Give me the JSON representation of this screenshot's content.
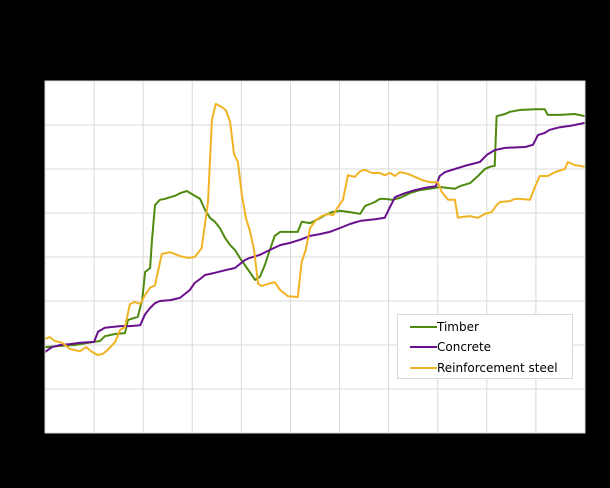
{
  "chart_data": {
    "type": "line",
    "title": "",
    "xlabel": "",
    "ylabel": "",
    "note": "Axis tick labels and title are rendered black-on-black and not legible; values are expressed in gridline units (0 = bottom gridline, 8 = top gridline), x in gridline intervals (0-11).",
    "xlim": [
      0,
      11
    ],
    "ylim": [
      0,
      8
    ],
    "grid": true,
    "legend_position": "lower right (inside plot)",
    "x_gridlines": 12,
    "y_gridlines": 9,
    "series": [
      {
        "name": "Timber",
        "color": "#4d8a0e",
        "points": [
          [
            0,
            1.95
          ],
          [
            0.31,
            1.98
          ],
          [
            0.61,
            2.0
          ],
          [
            1.0,
            2.07
          ],
          [
            1.12,
            2.09
          ],
          [
            1.22,
            2.2
          ],
          [
            1.43,
            2.25
          ],
          [
            1.63,
            2.27
          ],
          [
            1.69,
            2.57
          ],
          [
            1.89,
            2.64
          ],
          [
            1.98,
            3.02
          ],
          [
            2.04,
            3.66
          ],
          [
            2.14,
            3.75
          ],
          [
            2.18,
            4.39
          ],
          [
            2.24,
            5.18
          ],
          [
            2.34,
            5.3
          ],
          [
            2.44,
            5.32
          ],
          [
            2.55,
            5.36
          ],
          [
            2.65,
            5.39
          ],
          [
            2.75,
            5.45
          ],
          [
            2.89,
            5.5
          ],
          [
            3.05,
            5.39
          ],
          [
            3.16,
            5.32
          ],
          [
            3.26,
            5.07
          ],
          [
            3.36,
            4.89
          ],
          [
            3.46,
            4.8
          ],
          [
            3.56,
            4.66
          ],
          [
            3.67,
            4.43
          ],
          [
            3.77,
            4.27
          ],
          [
            3.87,
            4.16
          ],
          [
            3.97,
            3.98
          ],
          [
            4.07,
            3.82
          ],
          [
            4.17,
            3.66
          ],
          [
            4.28,
            3.48
          ],
          [
            4.38,
            3.55
          ],
          [
            4.48,
            3.82
          ],
          [
            4.58,
            4.16
          ],
          [
            4.68,
            4.48
          ],
          [
            4.79,
            4.57
          ],
          [
            4.99,
            4.57
          ],
          [
            5.15,
            4.57
          ],
          [
            5.23,
            4.8
          ],
          [
            5.4,
            4.77
          ],
          [
            5.56,
            4.86
          ],
          [
            5.7,
            4.95
          ],
          [
            5.85,
            5.02
          ],
          [
            6.01,
            5.05
          ],
          [
            6.21,
            5.02
          ],
          [
            6.42,
            4.98
          ],
          [
            6.52,
            5.16
          ],
          [
            6.72,
            5.25
          ],
          [
            6.82,
            5.32
          ],
          [
            6.92,
            5.32
          ],
          [
            7.07,
            5.3
          ],
          [
            7.23,
            5.34
          ],
          [
            7.43,
            5.45
          ],
          [
            7.64,
            5.52
          ],
          [
            7.84,
            5.55
          ],
          [
            8.04,
            5.59
          ],
          [
            8.19,
            5.57
          ],
          [
            8.35,
            5.55
          ],
          [
            8.45,
            5.61
          ],
          [
            8.66,
            5.68
          ],
          [
            8.82,
            5.84
          ],
          [
            8.96,
            6.0
          ],
          [
            9.06,
            6.05
          ],
          [
            9.16,
            6.07
          ],
          [
            9.2,
            7.2
          ],
          [
            9.37,
            7.25
          ],
          [
            9.47,
            7.3
          ],
          [
            9.67,
            7.34
          ],
          [
            9.98,
            7.36
          ],
          [
            10.18,
            7.36
          ],
          [
            10.24,
            7.23
          ],
          [
            10.49,
            7.23
          ],
          [
            10.79,
            7.25
          ],
          [
            11.0,
            7.2
          ]
        ]
      },
      {
        "name": "Concrete",
        "color": "#6a0f8e",
        "points": [
          [
            0,
            1.84
          ],
          [
            0.14,
            1.95
          ],
          [
            0.31,
            2.0
          ],
          [
            0.51,
            2.02
          ],
          [
            0.71,
            2.05
          ],
          [
            1.0,
            2.07
          ],
          [
            1.08,
            2.3
          ],
          [
            1.22,
            2.39
          ],
          [
            1.36,
            2.41
          ],
          [
            1.53,
            2.43
          ],
          [
            1.73,
            2.43
          ],
          [
            1.94,
            2.45
          ],
          [
            2.04,
            2.7
          ],
          [
            2.14,
            2.84
          ],
          [
            2.24,
            2.95
          ],
          [
            2.34,
            3.0
          ],
          [
            2.55,
            3.02
          ],
          [
            2.75,
            3.07
          ],
          [
            2.95,
            3.25
          ],
          [
            3.05,
            3.41
          ],
          [
            3.16,
            3.5
          ],
          [
            3.26,
            3.59
          ],
          [
            3.46,
            3.64
          ],
          [
            3.67,
            3.7
          ],
          [
            3.87,
            3.75
          ],
          [
            3.97,
            3.84
          ],
          [
            4.07,
            3.93
          ],
          [
            4.17,
            3.98
          ],
          [
            4.38,
            4.05
          ],
          [
            4.58,
            4.16
          ],
          [
            4.79,
            4.27
          ],
          [
            4.99,
            4.32
          ],
          [
            5.19,
            4.39
          ],
          [
            5.4,
            4.48
          ],
          [
            5.6,
            4.52
          ],
          [
            5.8,
            4.57
          ],
          [
            6.01,
            4.66
          ],
          [
            6.21,
            4.75
          ],
          [
            6.42,
            4.82
          ],
          [
            6.72,
            4.86
          ],
          [
            6.92,
            4.89
          ],
          [
            7.03,
            5.14
          ],
          [
            7.13,
            5.36
          ],
          [
            7.33,
            5.45
          ],
          [
            7.54,
            5.52
          ],
          [
            7.74,
            5.57
          ],
          [
            7.96,
            5.61
          ],
          [
            8.04,
            5.84
          ],
          [
            8.15,
            5.93
          ],
          [
            8.35,
            6.0
          ],
          [
            8.55,
            6.07
          ],
          [
            8.86,
            6.16
          ],
          [
            9.0,
            6.32
          ],
          [
            9.16,
            6.43
          ],
          [
            9.37,
            6.48
          ],
          [
            9.78,
            6.5
          ],
          [
            9.94,
            6.55
          ],
          [
            10.04,
            6.77
          ],
          [
            10.18,
            6.82
          ],
          [
            10.28,
            6.89
          ],
          [
            10.49,
            6.95
          ],
          [
            10.69,
            6.98
          ],
          [
            10.79,
            7.0
          ],
          [
            11.0,
            7.05
          ]
        ]
      },
      {
        "name": "Reinforcement steel",
        "color": "#f0b323",
        "points": [
          [
            0,
            2.14
          ],
          [
            0.1,
            2.18
          ],
          [
            0.2,
            2.09
          ],
          [
            0.35,
            2.05
          ],
          [
            0.51,
            1.91
          ],
          [
            0.71,
            1.86
          ],
          [
            0.84,
            1.95
          ],
          [
            0.96,
            1.84
          ],
          [
            1.08,
            1.77
          ],
          [
            1.18,
            1.8
          ],
          [
            1.28,
            1.89
          ],
          [
            1.43,
            2.07
          ],
          [
            1.53,
            2.34
          ],
          [
            1.63,
            2.41
          ],
          [
            1.73,
            2.93
          ],
          [
            1.83,
            2.98
          ],
          [
            1.94,
            2.93
          ],
          [
            2.04,
            3.14
          ],
          [
            2.14,
            3.3
          ],
          [
            2.24,
            3.36
          ],
          [
            2.38,
            4.07
          ],
          [
            2.55,
            4.11
          ],
          [
            2.75,
            4.02
          ],
          [
            2.91,
            3.98
          ],
          [
            3.05,
            4.0
          ],
          [
            3.19,
            4.2
          ],
          [
            3.32,
            5.25
          ],
          [
            3.4,
            7.11
          ],
          [
            3.48,
            7.48
          ],
          [
            3.6,
            7.41
          ],
          [
            3.68,
            7.34
          ],
          [
            3.77,
            7.07
          ],
          [
            3.85,
            6.34
          ],
          [
            3.93,
            6.16
          ],
          [
            4.01,
            5.41
          ],
          [
            4.09,
            4.89
          ],
          [
            4.17,
            4.61
          ],
          [
            4.26,
            4.16
          ],
          [
            4.34,
            3.39
          ],
          [
            4.42,
            3.34
          ],
          [
            4.54,
            3.39
          ],
          [
            4.68,
            3.43
          ],
          [
            4.79,
            3.25
          ],
          [
            4.95,
            3.11
          ],
          [
            5.15,
            3.09
          ],
          [
            5.23,
            3.89
          ],
          [
            5.31,
            4.16
          ],
          [
            5.4,
            4.66
          ],
          [
            5.52,
            4.84
          ],
          [
            5.64,
            4.93
          ],
          [
            5.76,
            4.98
          ],
          [
            5.87,
            4.95
          ],
          [
            5.95,
            5.11
          ],
          [
            6.07,
            5.3
          ],
          [
            6.17,
            5.86
          ],
          [
            6.31,
            5.82
          ],
          [
            6.42,
            5.95
          ],
          [
            6.52,
            5.98
          ],
          [
            6.66,
            5.91
          ],
          [
            6.82,
            5.91
          ],
          [
            6.92,
            5.86
          ],
          [
            7.03,
            5.91
          ],
          [
            7.13,
            5.84
          ],
          [
            7.23,
            5.93
          ],
          [
            7.39,
            5.89
          ],
          [
            7.54,
            5.82
          ],
          [
            7.68,
            5.75
          ],
          [
            7.84,
            5.7
          ],
          [
            8.0,
            5.7
          ],
          [
            8.08,
            5.48
          ],
          [
            8.21,
            5.3
          ],
          [
            8.35,
            5.3
          ],
          [
            8.41,
            4.89
          ],
          [
            8.49,
            4.91
          ],
          [
            8.66,
            4.93
          ],
          [
            8.82,
            4.89
          ],
          [
            8.96,
            4.98
          ],
          [
            9.1,
            5.02
          ],
          [
            9.2,
            5.18
          ],
          [
            9.27,
            5.25
          ],
          [
            9.47,
            5.27
          ],
          [
            9.57,
            5.32
          ],
          [
            9.67,
            5.32
          ],
          [
            9.88,
            5.3
          ],
          [
            9.98,
            5.59
          ],
          [
            10.08,
            5.84
          ],
          [
            10.24,
            5.84
          ],
          [
            10.39,
            5.93
          ],
          [
            10.59,
            6.0
          ],
          [
            10.65,
            6.16
          ],
          [
            10.79,
            6.09
          ],
          [
            11.0,
            6.05
          ]
        ]
      }
    ]
  },
  "legend": {
    "items": [
      {
        "label": "Timber",
        "color": "#4d8a0e"
      },
      {
        "label": "Concrete",
        "color": "#6a0f8e"
      },
      {
        "label": "Reinforcement steel",
        "color": "#f0b323"
      }
    ]
  }
}
